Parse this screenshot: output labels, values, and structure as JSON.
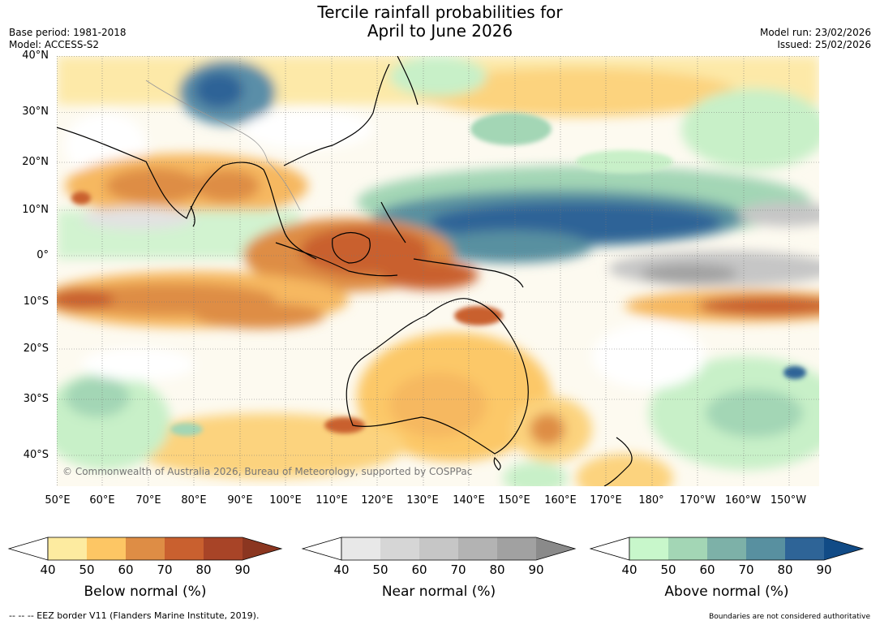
{
  "title": {
    "line1": "Tercile rainfall probabilities for",
    "line2": "April to June 2026"
  },
  "meta": {
    "base_period": "Base period: 1981-2018",
    "model": "Model: ACCESS-S2",
    "model_run": "Model run: 23/02/2026",
    "issued": "Issued: 25/02/2026"
  },
  "map": {
    "lat_labels": [
      "40°N",
      "30°N",
      "20°N",
      "10°N",
      "0°",
      "10°S",
      "20°S",
      "30°S",
      "40°S"
    ],
    "lon_labels": [
      "50°E",
      "60°E",
      "70°E",
      "80°E",
      "90°E",
      "100°E",
      "110°E",
      "120°E",
      "130°E",
      "140°E",
      "150°E",
      "160°E",
      "170°E",
      "180°",
      "170°W",
      "160°W",
      "150°W"
    ],
    "copyright": "© Commonwealth of Australia 2026, Bureau of Meteorology, supported by COSPPac"
  },
  "colorbars": {
    "ticks": [
      "40",
      "50",
      "60",
      "70",
      "80",
      "90"
    ],
    "below": {
      "label": "Below normal (%)",
      "colors": [
        "#fdeba0",
        "#fdc664",
        "#de8d45",
        "#c9602f",
        "#a84427",
        "#8b3620"
      ]
    },
    "near": {
      "label": "Near normal (%)",
      "colors": [
        "#e8e8e8",
        "#d6d6d6",
        "#c6c6c6",
        "#b3b3b3",
        "#a1a1a1",
        "#8a8a8a"
      ]
    },
    "above": {
      "label": "Above normal (%)",
      "colors": [
        "#c8f7cb",
        "#a3d6b5",
        "#7db1a8",
        "#5890a0",
        "#2e6497",
        "#114b86"
      ]
    }
  },
  "footer": {
    "eez": "--  --  -- EEZ border V11 (Flanders Marine Institute, 2019).",
    "disclaimer": "Boundaries are not considered authoritative"
  }
}
